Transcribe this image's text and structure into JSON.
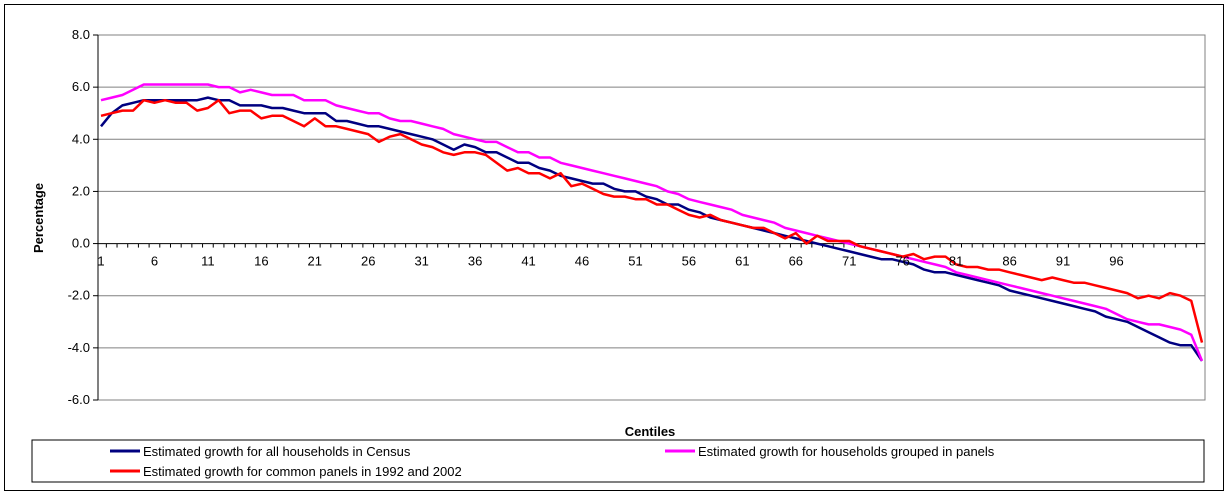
{
  "chart_data": {
    "type": "line",
    "title": "",
    "xlabel": "Centiles",
    "ylabel": "Percentage",
    "ylim": [
      -6,
      8
    ],
    "y_ticks": [
      "8.0",
      "6.0",
      "4.0",
      "2.0",
      "0.0",
      "-2.0",
      "-4.0",
      "-6.0"
    ],
    "x_tick_labels": [
      "1",
      "6",
      "11",
      "16",
      "21",
      "26",
      "31",
      "36",
      "41",
      "46",
      "51",
      "56",
      "61",
      "66",
      "71",
      "76",
      "81",
      "86",
      "91",
      "96"
    ],
    "grid": "horizontal",
    "legend_position": "bottom",
    "series": [
      {
        "name": "Estimated growth for all households in Census",
        "color": "#000080",
        "values": [
          4.5,
          5.0,
          5.3,
          5.4,
          5.5,
          5.5,
          5.5,
          5.5,
          5.5,
          5.5,
          5.6,
          5.5,
          5.5,
          5.3,
          5.3,
          5.3,
          5.2,
          5.2,
          5.1,
          5.0,
          5.0,
          5.0,
          4.7,
          4.7,
          4.6,
          4.5,
          4.5,
          4.4,
          4.3,
          4.2,
          4.1,
          4.0,
          3.8,
          3.6,
          3.8,
          3.7,
          3.5,
          3.5,
          3.3,
          3.1,
          3.1,
          2.9,
          2.8,
          2.6,
          2.5,
          2.4,
          2.3,
          2.3,
          2.1,
          2.0,
          2.0,
          1.8,
          1.7,
          1.5,
          1.5,
          1.3,
          1.2,
          1.0,
          0.9,
          0.8,
          0.7,
          0.6,
          0.5,
          0.4,
          0.3,
          0.2,
          0.1,
          0.0,
          -0.1,
          -0.2,
          -0.3,
          -0.4,
          -0.5,
          -0.6,
          -0.6,
          -0.7,
          -0.8,
          -1.0,
          -1.1,
          -1.1,
          -1.2,
          -1.3,
          -1.4,
          -1.5,
          -1.6,
          -1.8,
          -1.9,
          -2.0,
          -2.1,
          -2.2,
          -2.3,
          -2.4,
          -2.5,
          -2.6,
          -2.8,
          -2.9,
          -3.0,
          -3.2,
          -3.4,
          -3.6,
          -3.8,
          -3.9,
          -3.9,
          -4.5
        ]
      },
      {
        "name": "Estimated growth for households grouped in panels",
        "color": "#ff00ff",
        "values": [
          5.5,
          5.6,
          5.7,
          5.9,
          6.1,
          6.1,
          6.1,
          6.1,
          6.1,
          6.1,
          6.1,
          6.0,
          6.0,
          5.8,
          5.9,
          5.8,
          5.7,
          5.7,
          5.7,
          5.5,
          5.5,
          5.5,
          5.3,
          5.2,
          5.1,
          5.0,
          5.0,
          4.8,
          4.7,
          4.7,
          4.6,
          4.5,
          4.4,
          4.2,
          4.1,
          4.0,
          3.9,
          3.9,
          3.7,
          3.5,
          3.5,
          3.3,
          3.3,
          3.1,
          3.0,
          2.9,
          2.8,
          2.7,
          2.6,
          2.5,
          2.4,
          2.3,
          2.2,
          2.0,
          1.9,
          1.7,
          1.6,
          1.5,
          1.4,
          1.3,
          1.1,
          1.0,
          0.9,
          0.8,
          0.6,
          0.5,
          0.4,
          0.3,
          0.2,
          0.1,
          0.0,
          -0.1,
          -0.2,
          -0.3,
          -0.4,
          -0.5,
          -0.6,
          -0.7,
          -0.8,
          -0.9,
          -1.1,
          -1.2,
          -1.3,
          -1.4,
          -1.5,
          -1.6,
          -1.7,
          -1.8,
          -1.9,
          -2.0,
          -2.1,
          -2.2,
          -2.3,
          -2.4,
          -2.5,
          -2.7,
          -2.9,
          -3.0,
          -3.1,
          -3.1,
          -3.2,
          -3.3,
          -3.5,
          -4.5
        ]
      },
      {
        "name": "Estimated growth for common panels in 1992 and 2002",
        "color": "#ff0000",
        "values": [
          4.9,
          5.0,
          5.1,
          5.1,
          5.5,
          5.4,
          5.5,
          5.4,
          5.4,
          5.1,
          5.2,
          5.5,
          5.0,
          5.1,
          5.1,
          4.8,
          4.9,
          4.9,
          4.7,
          4.5,
          4.8,
          4.5,
          4.5,
          4.4,
          4.3,
          4.2,
          3.9,
          4.1,
          4.2,
          4.0,
          3.8,
          3.7,
          3.5,
          3.4,
          3.5,
          3.5,
          3.4,
          3.1,
          2.8,
          2.9,
          2.7,
          2.7,
          2.5,
          2.7,
          2.2,
          2.3,
          2.1,
          1.9,
          1.8,
          1.8,
          1.7,
          1.7,
          1.5,
          1.5,
          1.3,
          1.1,
          1.0,
          1.1,
          0.9,
          0.8,
          0.7,
          0.6,
          0.6,
          0.4,
          0.2,
          0.4,
          0.0,
          0.3,
          0.1,
          0.1,
          0.1,
          -0.1,
          -0.2,
          -0.3,
          -0.4,
          -0.5,
          -0.4,
          -0.6,
          -0.5,
          -0.5,
          -0.8,
          -0.9,
          -0.9,
          -1.0,
          -1.0,
          -1.1,
          -1.2,
          -1.3,
          -1.4,
          -1.3,
          -1.4,
          -1.5,
          -1.5,
          -1.6,
          -1.7,
          -1.8,
          -1.9,
          -2.1,
          -2.0,
          -2.1,
          -1.9,
          -2.0,
          -2.2,
          -3.8
        ]
      }
    ]
  }
}
